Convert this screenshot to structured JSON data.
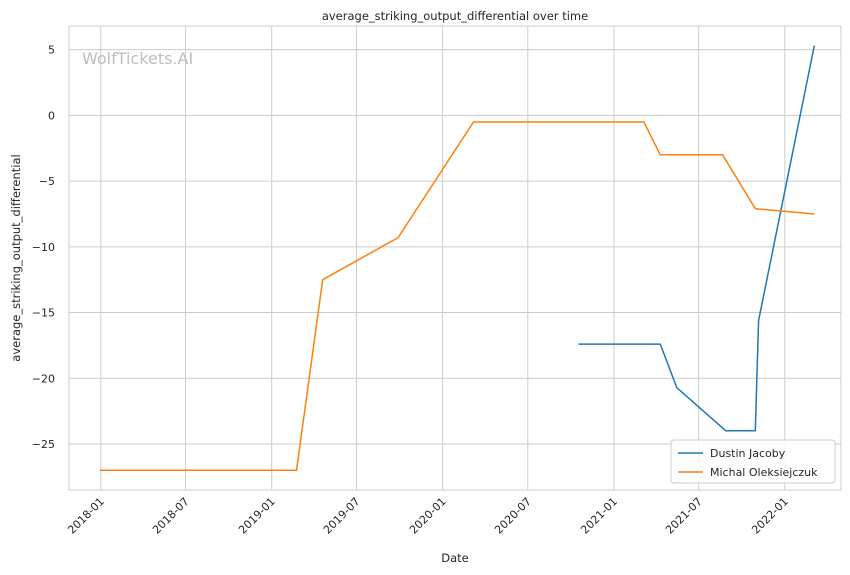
{
  "chart_data": {
    "type": "line",
    "title": "average_striking_output_differential over time",
    "xlabel": "Date",
    "ylabel": "average_striking_output_differential",
    "watermark": "WolfTickets.AI",
    "x_ticks": [
      "2018-01",
      "2018-07",
      "2019-01",
      "2019-07",
      "2020-01",
      "2020-07",
      "2021-01",
      "2021-07",
      "2022-01"
    ],
    "y_ticks": [
      5,
      0,
      -5,
      -10,
      -15,
      -20,
      -25
    ],
    "y_tick_labels": [
      "5",
      "0",
      "−5",
      "−10",
      "−15",
      "−20",
      "−25"
    ],
    "xlim": [
      "2017-10-25",
      "2022-05-01"
    ],
    "ylim": [
      -28.5,
      6.8
    ],
    "grid": true,
    "legend_position": "lower-right",
    "series": [
      {
        "name": "Dustin Jacoby",
        "color": "#1f77b4",
        "points": [
          {
            "x": "2020-10-17",
            "y": -17.4
          },
          {
            "x": "2021-04-10",
            "y": -17.4
          },
          {
            "x": "2021-05-15",
            "y": -20.7
          },
          {
            "x": "2021-08-28",
            "y": -24.0
          },
          {
            "x": "2021-10-30",
            "y": -24.0
          },
          {
            "x": "2021-11-06",
            "y": -15.6
          },
          {
            "x": "2022-03-05",
            "y": 5.3
          }
        ]
      },
      {
        "name": "Michal Oleksiejczuk",
        "color": "#ff7f0e",
        "points": [
          {
            "x": "2017-12-30",
            "y": -27.0
          },
          {
            "x": "2019-02-23",
            "y": -27.0
          },
          {
            "x": "2019-04-20",
            "y": -12.5
          },
          {
            "x": "2019-09-28",
            "y": -9.3
          },
          {
            "x": "2020-03-07",
            "y": -0.5
          },
          {
            "x": "2021-03-06",
            "y": -0.5
          },
          {
            "x": "2021-04-10",
            "y": -3.0
          },
          {
            "x": "2021-08-21",
            "y": -3.0
          },
          {
            "x": "2021-10-30",
            "y": -7.1
          },
          {
            "x": "2022-03-05",
            "y": -7.5
          }
        ]
      }
    ]
  }
}
